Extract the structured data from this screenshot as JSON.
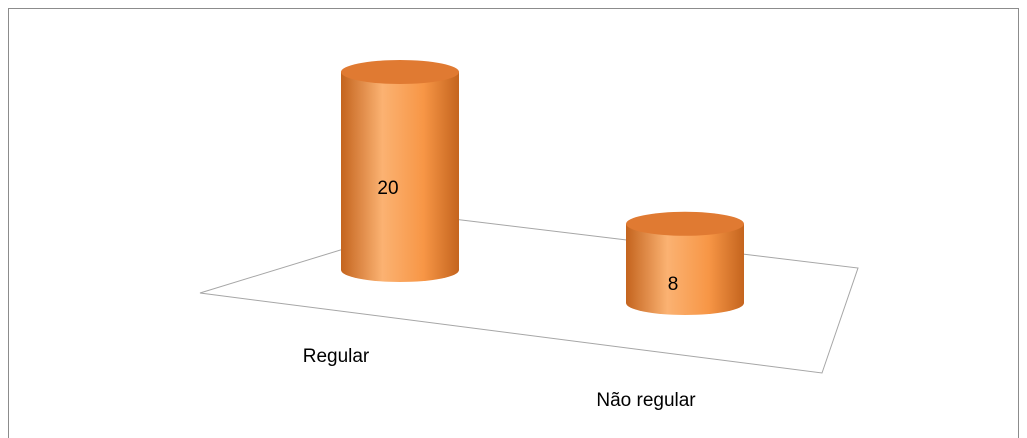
{
  "chart_data": {
    "type": "bar",
    "style": "3d-cylinder",
    "categories": [
      "Regular",
      "Não regular"
    ],
    "values": [
      20,
      8
    ],
    "data_labels": [
      "20",
      "8"
    ],
    "ylim": [
      0,
      20
    ],
    "grid": false,
    "legend": "none",
    "colors": {
      "bar": "#f79646",
      "bar_light": "#fbb272",
      "bar_dark": "#c4641e",
      "bar_top": "#e07a32",
      "floor_line": "#a6a6a6",
      "frame": "#8c8c8c"
    }
  }
}
